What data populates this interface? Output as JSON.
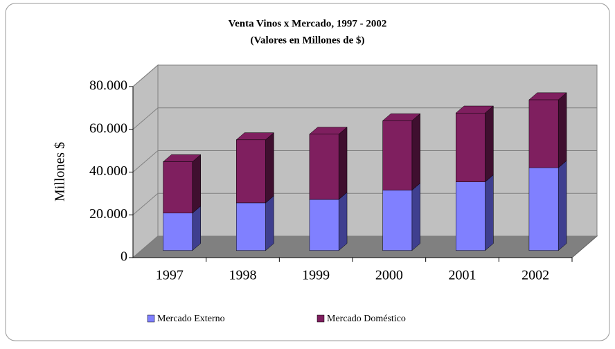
{
  "chart_data": {
    "type": "bar3d_stacked",
    "title": "Venta Vinos x Mercado, 1997 - 2002",
    "subtitle": "(Valores en Millones de $)",
    "y_label": "Millones $",
    "categories": [
      "1997",
      "1998",
      "1999",
      "2000",
      "2001",
      "2002"
    ],
    "series": [
      {
        "name": "Mercado Externo",
        "color": "#8080ff",
        "side_color": "#3f3f8f",
        "values": [
          17500,
          22300,
          23900,
          28200,
          32100,
          38700
        ]
      },
      {
        "name": "Mercado Doméstico",
        "color": "#7f1f5f",
        "side_color": "#3f0f2f",
        "values": [
          24000,
          29500,
          30500,
          32500,
          32200,
          31800
        ]
      }
    ],
    "ylim": [
      0,
      80000
    ],
    "yticks": [
      {
        "value": 0,
        "label": "0"
      },
      {
        "value": 20000,
        "label": "20.000"
      },
      {
        "value": 40000,
        "label": "40.000"
      },
      {
        "value": 60000,
        "label": "60.000"
      },
      {
        "value": 80000,
        "label": "80.000"
      }
    ],
    "grid": true,
    "legend": "bottom"
  }
}
